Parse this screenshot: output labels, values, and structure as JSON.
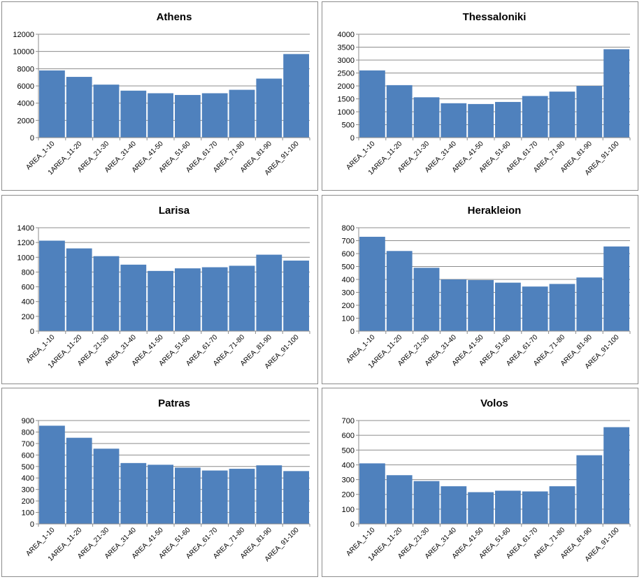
{
  "colors": {
    "bar": "#4f81bd",
    "bar_edge": "#ffffff",
    "grid": "#8c8c8c",
    "axis": "#8c8c8c"
  },
  "chart_data": [
    {
      "type": "bar",
      "title": "Athens",
      "xlabel": "",
      "ylabel": "",
      "categories": [
        "AREA_1-10",
        "1AREA_11-20",
        "AREA_21-30",
        "AREA_31-40",
        "AREA_41-50",
        "AREA_51-60",
        "AREA_61-70",
        "AREA_71-80",
        "AREA_81-90",
        "AREA_91-100"
      ],
      "values": [
        7800,
        7050,
        6150,
        5450,
        5150,
        4950,
        5150,
        5550,
        6850,
        9700
      ],
      "ylim": [
        0,
        12000
      ],
      "yticks": [
        0,
        2000,
        4000,
        6000,
        8000,
        10000,
        12000
      ],
      "ytick_labels": [
        "0",
        "2000",
        "4000",
        "6000",
        "8000",
        "10000",
        "12000"
      ],
      "grid": true,
      "legend": "none"
    },
    {
      "type": "bar",
      "title": "Thessaloniki",
      "xlabel": "",
      "ylabel": "",
      "categories": [
        "AREA_1-10",
        "1AREA_11-20",
        "AREA_21-30",
        "AREA_31-40",
        "AREA_41-50",
        "AREA_51-60",
        "AREA_61-70",
        "AREA_71-80",
        "AREA_81-90",
        "AREA_91-100"
      ],
      "values": [
        2600,
        2030,
        1560,
        1330,
        1300,
        1380,
        1610,
        1780,
        2000,
        3420
      ],
      "ylim": [
        0,
        4000
      ],
      "yticks": [
        0,
        500,
        1000,
        1500,
        2000,
        2500,
        3000,
        3500,
        4000
      ],
      "ytick_labels": [
        "0",
        "500",
        "1000",
        "1500",
        "2000",
        "2500",
        "3000",
        "3500",
        "4000"
      ],
      "grid": true,
      "legend": "none"
    },
    {
      "type": "bar",
      "title": "Larisa",
      "xlabel": "",
      "ylabel": "",
      "categories": [
        "AREA_1-10",
        "1AREA_11-20",
        "AREA_21-30",
        "AREA_31-40",
        "AREA_41-50",
        "AREA_51-60",
        "AREA_61-70",
        "AREA_71-80",
        "AREA_81-90",
        "AREA_91-100"
      ],
      "values": [
        1225,
        1120,
        1015,
        900,
        815,
        850,
        865,
        885,
        1035,
        955
      ],
      "ylim": [
        0,
        1400
      ],
      "yticks": [
        0,
        200,
        400,
        600,
        800,
        1000,
        1200,
        1400
      ],
      "ytick_labels": [
        "0",
        "200",
        "400",
        "600",
        "800",
        "1000",
        "1200",
        "1400"
      ],
      "grid": true,
      "legend": "none"
    },
    {
      "type": "bar",
      "title": "Herakleion",
      "xlabel": "",
      "ylabel": "",
      "categories": [
        "AREA_1-10",
        "1AREA_11-20",
        "AREA_21-30",
        "AREA_31-40",
        "AREA_41-50",
        "AREA_51-60",
        "AREA_61-70",
        "AREA_71-80",
        "AREA_81-90",
        "AREA_91-100"
      ],
      "values": [
        730,
        620,
        490,
        400,
        395,
        375,
        345,
        365,
        415,
        655
      ],
      "ylim": [
        0,
        800
      ],
      "yticks": [
        0,
        100,
        200,
        300,
        400,
        500,
        600,
        700,
        800
      ],
      "ytick_labels": [
        "0",
        "100",
        "200",
        "300",
        "400",
        "500",
        "600",
        "700",
        "800"
      ],
      "grid": true,
      "legend": "none"
    },
    {
      "type": "bar",
      "title": "Patras",
      "xlabel": "",
      "ylabel": "",
      "categories": [
        "AREA_1-10",
        "1AREA_11-20",
        "AREA_21-30",
        "AREA_31-40",
        "AREA_41-50",
        "AREA_51-60",
        "AREA_61-70",
        "AREA_71-80",
        "AREA_81-90",
        "AREA_91-100"
      ],
      "values": [
        855,
        750,
        655,
        530,
        515,
        490,
        465,
        480,
        510,
        460
      ],
      "ylim": [
        0,
        900
      ],
      "yticks": [
        0,
        100,
        200,
        300,
        400,
        500,
        600,
        700,
        800,
        900
      ],
      "ytick_labels": [
        "0",
        "100",
        "200",
        "300",
        "400",
        "500",
        "600",
        "700",
        "800",
        "900"
      ],
      "grid": true,
      "legend": "none"
    },
    {
      "type": "bar",
      "title": "Volos",
      "xlabel": "",
      "ylabel": "",
      "categories": [
        "AREA_1-10",
        "1AREA_11-20",
        "AREA_21-30",
        "AREA_31-40",
        "AREA_41-50",
        "AREA_51-60",
        "AREA_61-70",
        "AREA_71-80",
        "AREA_81-90",
        "AREA_91-100"
      ],
      "values": [
        410,
        330,
        290,
        255,
        215,
        225,
        220,
        255,
        465,
        655
      ],
      "ylim": [
        0,
        700
      ],
      "yticks": [
        0,
        100,
        200,
        300,
        400,
        500,
        600,
        700
      ],
      "ytick_labels": [
        "0",
        "100",
        "200",
        "300",
        "400",
        "500",
        "600",
        "700"
      ],
      "grid": true,
      "legend": "none"
    }
  ]
}
